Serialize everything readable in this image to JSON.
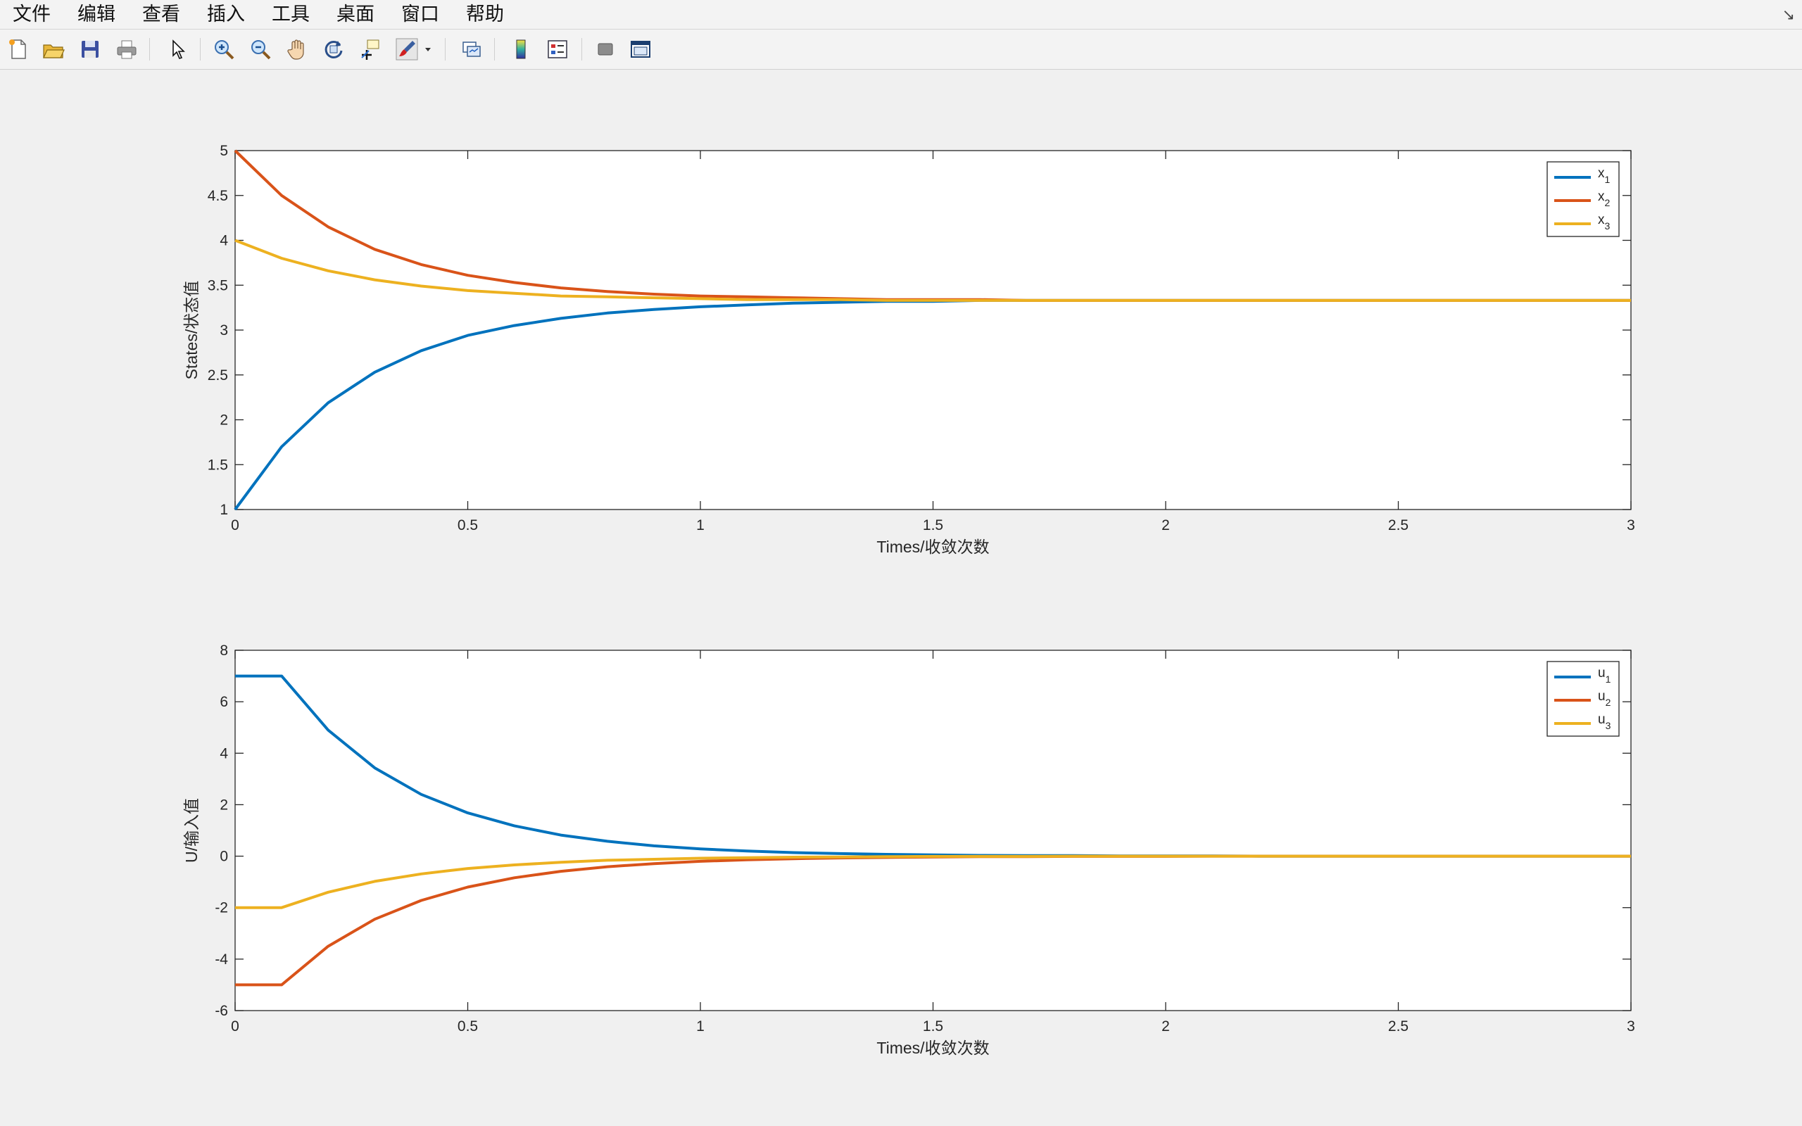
{
  "menu": {
    "items": [
      "文件",
      "编辑",
      "查看",
      "插入",
      "工具",
      "桌面",
      "窗口",
      "帮助"
    ]
  },
  "toolbar": {
    "buttons": [
      "new-figure-icon",
      "open-file-icon",
      "save-icon",
      "print-icon",
      "pointer-icon",
      "zoom-in-icon",
      "zoom-out-icon",
      "pan-hand-icon",
      "rotate-3d-icon",
      "data-cursor-icon",
      "brush-icon",
      "link-plot-icon",
      "colorbar-icon",
      "legend-icon",
      "hide-plot-tools-icon",
      "show-plot-tools-icon"
    ]
  },
  "colors": {
    "series1": "#0072BD",
    "series2": "#D95319",
    "series3": "#EDB120"
  },
  "chart_data": [
    {
      "type": "line",
      "title": "",
      "xlabel": "Times/收敛次数",
      "ylabel": "States/状态值",
      "xlim": [
        0,
        3
      ],
      "ylim": [
        1,
        5
      ],
      "xticks": [
        "0",
        "0.5",
        "1",
        "1.5",
        "2",
        "2.5",
        "3"
      ],
      "yticks": [
        "1",
        "1.5",
        "2",
        "2.5",
        "3",
        "3.5",
        "4",
        "4.5",
        "5"
      ],
      "legend_position": "top-right",
      "x": [
        0,
        0.1,
        0.2,
        0.3,
        0.4,
        0.5,
        0.6,
        0.7,
        0.8,
        0.9,
        1.0,
        1.1,
        1.2,
        1.3,
        1.4,
        1.5,
        1.6,
        1.7,
        1.8,
        1.9,
        2.0,
        2.1,
        2.2,
        2.3,
        2.4,
        2.5,
        2.6,
        2.7,
        2.8,
        2.9,
        3.0
      ],
      "series": [
        {
          "name": "x1",
          "base": "x",
          "sub": "1",
          "values": [
            1.0,
            1.7,
            2.19,
            2.53,
            2.77,
            2.94,
            3.05,
            3.13,
            3.19,
            3.23,
            3.26,
            3.28,
            3.3,
            3.31,
            3.32,
            3.32,
            3.33,
            3.33,
            3.33,
            3.33,
            3.33,
            3.33,
            3.33,
            3.33,
            3.33,
            3.33,
            3.33,
            3.33,
            3.33,
            3.33,
            3.33
          ]
        },
        {
          "name": "x2",
          "base": "x",
          "sub": "2",
          "values": [
            5.0,
            4.5,
            4.15,
            3.9,
            3.73,
            3.61,
            3.53,
            3.47,
            3.43,
            3.4,
            3.38,
            3.37,
            3.36,
            3.35,
            3.34,
            3.34,
            3.34,
            3.33,
            3.33,
            3.33,
            3.33,
            3.33,
            3.33,
            3.33,
            3.33,
            3.33,
            3.33,
            3.33,
            3.33,
            3.33,
            3.33
          ]
        },
        {
          "name": "x3",
          "base": "x",
          "sub": "3",
          "values": [
            4.0,
            3.8,
            3.66,
            3.56,
            3.49,
            3.44,
            3.41,
            3.38,
            3.37,
            3.36,
            3.35,
            3.34,
            3.34,
            3.34,
            3.33,
            3.33,
            3.33,
            3.33,
            3.33,
            3.33,
            3.33,
            3.33,
            3.33,
            3.33,
            3.33,
            3.33,
            3.33,
            3.33,
            3.33,
            3.33,
            3.33
          ]
        }
      ]
    },
    {
      "type": "line",
      "title": "",
      "xlabel": "Times/收敛次数",
      "ylabel": "U/输入值",
      "xlim": [
        0,
        3
      ],
      "ylim": [
        -6,
        8
      ],
      "xticks": [
        "0",
        "0.5",
        "1",
        "1.5",
        "2",
        "2.5",
        "3"
      ],
      "yticks": [
        "-6",
        "-4",
        "-2",
        "0",
        "2",
        "4",
        "6",
        "8"
      ],
      "legend_position": "top-right",
      "x": [
        0,
        0.1,
        0.2,
        0.3,
        0.4,
        0.5,
        0.6,
        0.7,
        0.8,
        0.9,
        1.0,
        1.1,
        1.2,
        1.3,
        1.4,
        1.5,
        1.6,
        1.7,
        1.8,
        1.9,
        2.0,
        2.1,
        2.2,
        2.3,
        2.4,
        2.5,
        2.6,
        2.7,
        2.8,
        2.9,
        3.0
      ],
      "series": [
        {
          "name": "u1",
          "base": "u",
          "sub": "1",
          "values": [
            7.0,
            7.0,
            4.9,
            3.43,
            2.4,
            1.68,
            1.18,
            0.82,
            0.58,
            0.4,
            0.28,
            0.2,
            0.14,
            0.1,
            0.07,
            0.05,
            0.03,
            0.02,
            0.02,
            0.01,
            0.01,
            0.01,
            0.0,
            0.0,
            0.0,
            0.0,
            0.0,
            0.0,
            0.0,
            0.0,
            0.0
          ]
        },
        {
          "name": "u2",
          "base": "u",
          "sub": "2",
          "values": [
            -5.0,
            -5.0,
            -3.5,
            -2.45,
            -1.72,
            -1.2,
            -0.84,
            -0.59,
            -0.41,
            -0.29,
            -0.2,
            -0.14,
            -0.1,
            -0.07,
            -0.05,
            -0.03,
            -0.02,
            -0.02,
            -0.01,
            -0.01,
            -0.01,
            0.0,
            0.0,
            0.0,
            0.0,
            0.0,
            0.0,
            0.0,
            0.0,
            0.0,
            0.0
          ]
        },
        {
          "name": "u3",
          "base": "u",
          "sub": "3",
          "values": [
            -2.0,
            -2.0,
            -1.4,
            -0.98,
            -0.69,
            -0.48,
            -0.34,
            -0.24,
            -0.16,
            -0.12,
            -0.08,
            -0.06,
            -0.04,
            -0.03,
            -0.02,
            -0.01,
            -0.01,
            -0.01,
            0.0,
            0.0,
            0.0,
            0.0,
            0.0,
            0.0,
            0.0,
            0.0,
            0.0,
            0.0,
            0.0,
            0.0,
            0.0
          ]
        }
      ]
    }
  ]
}
